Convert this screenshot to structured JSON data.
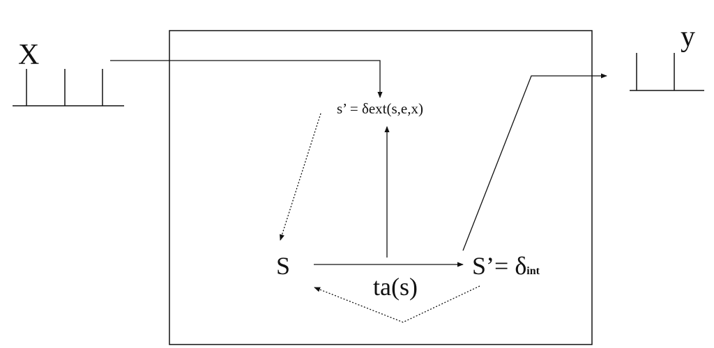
{
  "labels": {
    "input_port": "X",
    "output_port": "y",
    "state": "S",
    "next_state_prefix": "S’= δ",
    "next_state_subscript": "int",
    "time_advance": "ta(s)",
    "external_transition": "s’ = δext(s,e,x)"
  },
  "colors": {
    "ink": "#111111",
    "background": "#ffffff"
  }
}
